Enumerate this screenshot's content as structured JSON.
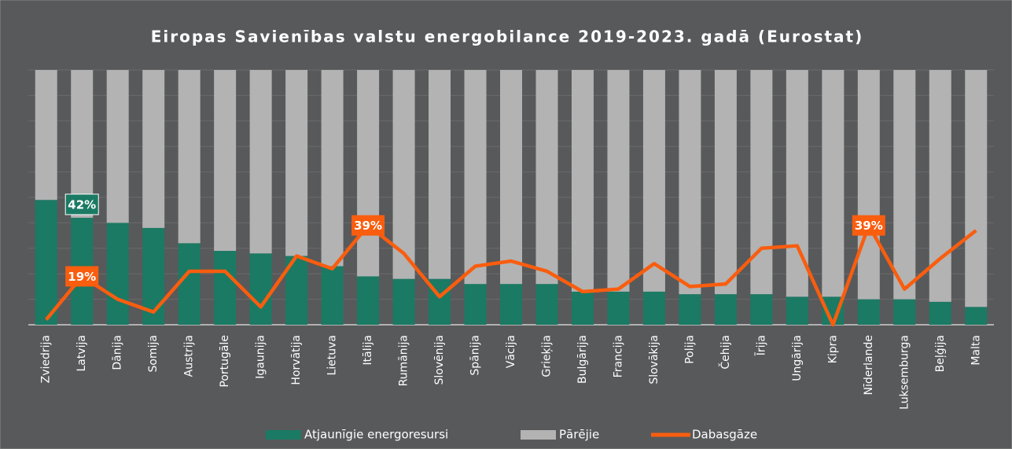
{
  "chart_data": {
    "type": "stacked-bar-line",
    "title": "Eiropas Savienības valstu energobilance 2019-2023. gadā (Eurostat)",
    "categories": [
      "Zviedrija",
      "Latvija",
      "Dānija",
      "Somija",
      "Austrija",
      "Portugāle",
      "Igaunija",
      "Horvātija",
      "Lietuva",
      "Itālija",
      "Rumānija",
      "Slovēnija",
      "Spānija",
      "Vācija",
      "Grieķija",
      "Bulgārija",
      "Francija",
      "Slovākija",
      "Polija",
      "Čehija",
      "Īrija",
      "Ungārija",
      "Kipra",
      "Nīderlande",
      "Luksemburga",
      "Beļģija",
      "Malta"
    ],
    "series": [
      {
        "name": "Atjaunīgie energoresursi",
        "color": "#1b7a64",
        "kind": "bar",
        "values": [
          49,
          42,
          40,
          38,
          32,
          29,
          28,
          27,
          23,
          19,
          18,
          18,
          16,
          16,
          16,
          13,
          13,
          13,
          12,
          12,
          12,
          11,
          11,
          10,
          10,
          9,
          7
        ],
        "value_labels": [
          null,
          "42%",
          null,
          null,
          null,
          null,
          null,
          null,
          null,
          null,
          null,
          null,
          null,
          null,
          null,
          null,
          null,
          null,
          null,
          null,
          null,
          null,
          null,
          null,
          null,
          null,
          null
        ]
      },
      {
        "name": "Pārējie",
        "color": "#b3b3b3",
        "kind": "bar",
        "values": [
          51,
          58,
          60,
          62,
          68,
          71,
          72,
          73,
          77,
          81,
          82,
          82,
          84,
          84,
          84,
          87,
          87,
          87,
          88,
          88,
          88,
          89,
          89,
          90,
          90,
          91,
          93
        ]
      },
      {
        "name": "Dabasgāze",
        "color": "#f95d0e",
        "kind": "line",
        "values": [
          2,
          19,
          10,
          5,
          21,
          21,
          7,
          27,
          22,
          39,
          28,
          11,
          23,
          25,
          21,
          13,
          14,
          24,
          15,
          16,
          30,
          31,
          0,
          39,
          14,
          26,
          37
        ],
        "value_labels": [
          null,
          "19%",
          null,
          null,
          null,
          null,
          null,
          null,
          null,
          "39%",
          null,
          null,
          null,
          null,
          null,
          null,
          null,
          null,
          null,
          null,
          null,
          null,
          null,
          "39%",
          null,
          null,
          null
        ]
      }
    ],
    "ylim": [
      0,
      100
    ],
    "yticks": [
      0,
      10,
      20,
      30,
      40,
      50,
      60,
      70,
      80,
      90,
      100
    ],
    "grid": true
  }
}
